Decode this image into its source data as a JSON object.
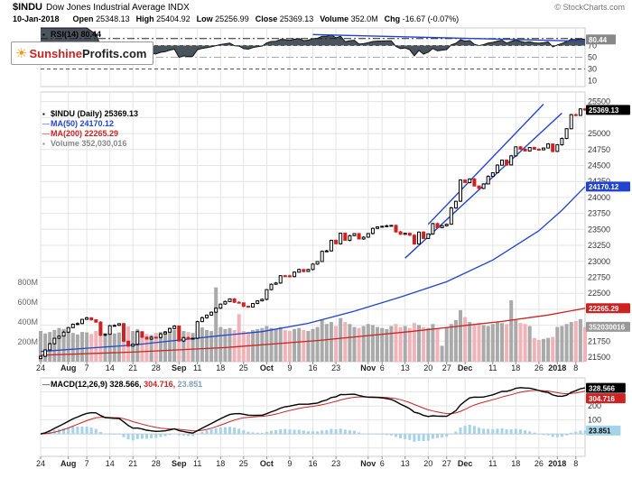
{
  "header": {
    "symbol": "$INDU",
    "title": "Dow Jones Industrial Average INDX",
    "credit": "© StockCharts.com",
    "date": "10-Jan-2018",
    "quote": [
      {
        "label": "Open",
        "value": "25348.13"
      },
      {
        "label": "High",
        "value": "25404.92"
      },
      {
        "label": "Low",
        "value": "25256.99"
      },
      {
        "label": "Close",
        "value": "25369.13"
      },
      {
        "label": "Volume",
        "value": "352.0M"
      },
      {
        "label": "Chg",
        "value": "-16.67 (-0.07%)"
      }
    ]
  },
  "logo": {
    "sun": "☀",
    "part1": "Sunshine",
    "part2": "Profits.com"
  },
  "rsi_panel": {
    "legend": "RSI(14) 80.44",
    "icon": "▪",
    "last_value": "80.44",
    "ticks": [
      70,
      50,
      30,
      10
    ]
  },
  "price_panel": {
    "legend": [
      {
        "name": "price-series",
        "icon": "▪",
        "color": "#000000",
        "text": "$INDU (Daily) 25369.13"
      },
      {
        "name": "ma50",
        "icon": "—",
        "color": "#2244cc",
        "text": "MA(50) 24170.12"
      },
      {
        "name": "ma200",
        "icon": "—",
        "color": "#cc2222",
        "text": "MA(200) 22265.29"
      },
      {
        "name": "volume",
        "icon": "▪",
        "color": "#888888",
        "text": "Volume 352,030,016"
      }
    ],
    "right_ticks": [
      25500,
      25000,
      24750,
      24500,
      24250,
      24000,
      23750,
      23500,
      23250,
      23000,
      22750,
      22500,
      21750,
      21500
    ],
    "left_ticks": [
      {
        "v": 800,
        "label": "800M"
      },
      {
        "v": 600,
        "label": "600M"
      },
      {
        "v": 400,
        "label": "400M"
      },
      {
        "v": 200,
        "label": "200M"
      }
    ],
    "boxes": {
      "close": "25369.13",
      "ma50": "24170.12",
      "ma200": "22265.29",
      "volume": "352030016"
    }
  },
  "macd_panel": {
    "legend_name": "MACD(12,26,9)",
    "legend_values": [
      {
        "text": "328.566,",
        "color": "#000000"
      },
      {
        "text": "304.716,",
        "color": "#cc2222"
      },
      {
        "text": "23.851",
        "color": "#7a9fbf"
      }
    ],
    "ticks": [
      200,
      100
    ],
    "boxes": {
      "macd": "328.566",
      "signal": "304.716",
      "hist": "23.851"
    }
  },
  "x_axis": {
    "ticks": [
      {
        "i": 0,
        "l": "24"
      },
      {
        "i": 6,
        "l": "Aug",
        "m": true
      },
      {
        "i": 10,
        "l": "7"
      },
      {
        "i": 15,
        "l": "14"
      },
      {
        "i": 20,
        "l": "21"
      },
      {
        "i": 25,
        "l": "28"
      },
      {
        "i": 30,
        "l": "Sep",
        "m": true
      },
      {
        "i": 34,
        "l": "11"
      },
      {
        "i": 39,
        "l": "18"
      },
      {
        "i": 44,
        "l": "25"
      },
      {
        "i": 49,
        "l": "Oct",
        "m": true
      },
      {
        "i": 54,
        "l": "9"
      },
      {
        "i": 59,
        "l": "16"
      },
      {
        "i": 64,
        "l": "23"
      },
      {
        "i": 71,
        "l": "Nov",
        "m": true
      },
      {
        "i": 74,
        "l": "6"
      },
      {
        "i": 79,
        "l": "13"
      },
      {
        "i": 84,
        "l": "20"
      },
      {
        "i": 88,
        "l": "27"
      },
      {
        "i": 92,
        "l": "Dec",
        "m": true
      },
      {
        "i": 98,
        "l": "11"
      },
      {
        "i": 103,
        "l": "18"
      },
      {
        "i": 108,
        "l": "26"
      },
      {
        "i": 112,
        "l": "2018",
        "m": true
      },
      {
        "i": 116,
        "l": "8"
      }
    ]
  },
  "colors": {
    "candle_up": "#000000",
    "candle_down": "#cc2222",
    "volume_up": "#aaaaaa",
    "volume_down": "#f0b3b8",
    "ma50": "#2244cc",
    "ma200": "#cc2222",
    "rsi_fill": "#3d4750",
    "rsi_line": "#111111",
    "macd_line": "#000000",
    "macd_signal": "#cc2222",
    "macd_hist": "#a5d3ea",
    "trendline": "#2244cc",
    "grid": "#e4e4e4"
  },
  "chart_data": {
    "type": "candlestick",
    "symbol": "$INDU",
    "timeframe": "Daily",
    "x_unit": "trading days, 24-Jul-2017 through 10-Jan-2018",
    "price_range": [
      21430,
      25650
    ],
    "closes": [
      21513,
      21613,
      21711,
      21796,
      21830,
      21891,
      21963,
      22016,
      22026,
      22092,
      22118,
      22085,
      22048,
      21844,
      21858,
      21993,
      21998,
      22024,
      21750,
      21674,
      21703,
      21899,
      21812,
      21783,
      21813,
      21808,
      21865,
      21892,
      21948,
      21987,
      21753,
      21807,
      21785,
      21797,
      22057,
      22118,
      22158,
      22203,
      22268,
      22331,
      22371,
      22413,
      22359,
      22350,
      22296,
      22284,
      22341,
      22381,
      22405,
      22557,
      22641,
      22661,
      22775,
      22774,
      22761,
      22831,
      22873,
      22841,
      22872,
      22957,
      22997,
      23158,
      23163,
      23329,
      23274,
      23441,
      23329,
      23401,
      23434,
      23349,
      23377,
      23435,
      23516,
      23539,
      23548,
      23557,
      23563,
      23462,
      23422,
      23440,
      23409,
      23271,
      23458,
      23358,
      23430,
      23591,
      23526,
      23558,
      23580,
      23836,
      23940,
      24272,
      24232,
      24290,
      24180,
      24140,
      24211,
      24329,
      24386,
      24505,
      24585,
      24508,
      24651,
      24792,
      24755,
      24727,
      24782,
      24754,
      24746,
      24774,
      24837,
      24719,
      24824,
      24923,
      25075,
      25296,
      25283,
      25386,
      25369
    ],
    "volumes_millions": [
      310,
      285,
      300,
      320,
      340,
      330,
      345,
      290,
      275,
      300,
      295,
      280,
      310,
      330,
      290,
      300,
      285,
      295,
      340,
      355,
      310,
      330,
      300,
      280,
      270,
      290,
      300,
      310,
      345,
      320,
      340,
      310,
      300,
      290,
      330,
      345,
      320,
      310,
      750,
      350,
      330,
      340,
      320,
      480,
      310,
      300,
      320,
      330,
      340,
      360,
      340,
      330,
      350,
      320,
      310,
      330,
      340,
      320,
      310,
      330,
      350,
      420,
      380,
      400,
      360,
      440,
      400,
      380,
      350,
      340,
      360,
      380,
      370,
      350,
      340,
      330,
      360,
      380,
      350,
      360,
      340,
      390,
      370,
      350,
      340,
      380,
      330,
      160,
      350,
      380,
      420,
      520,
      450,
      400,
      380,
      390,
      370,
      360,
      380,
      400,
      390,
      380,
      620,
      420,
      390,
      380,
      360,
      240,
      220,
      230,
      240,
      250,
      350,
      360,
      380,
      400,
      410,
      430,
      352
    ],
    "ma50_points": [
      [
        0,
        21590
      ],
      [
        10,
        21640
      ],
      [
        20,
        21690
      ],
      [
        29,
        21760
      ],
      [
        38,
        21830
      ],
      [
        48,
        21900
      ],
      [
        58,
        22030
      ],
      [
        68,
        22220
      ],
      [
        78,
        22440
      ],
      [
        88,
        22680
      ],
      [
        98,
        23020
      ],
      [
        108,
        23480
      ],
      [
        113,
        23800
      ],
      [
        118,
        24170.12
      ]
    ],
    "ma200_points": [
      [
        0,
        21530
      ],
      [
        20,
        21580
      ],
      [
        40,
        21650
      ],
      [
        60,
        21760
      ],
      [
        80,
        21900
      ],
      [
        100,
        22060
      ],
      [
        110,
        22160
      ],
      [
        118,
        22265.29
      ]
    ],
    "trendlines_price": [
      [
        79,
        23050,
        113,
        25320
      ],
      [
        84,
        23580,
        109,
        25460
      ]
    ],
    "trendline_rsi": [
      59,
      88.7,
      118,
      77.4
    ],
    "rsi_resistance_level": 82,
    "indicators": {
      "rsi_period": 14,
      "macd_params": [
        12,
        26,
        9
      ]
    },
    "last_values": {
      "open": 25348.13,
      "high": 25404.92,
      "low": 25256.99,
      "close": 25369.13,
      "volume_m": 352.0,
      "rsi": 80.44,
      "ma50": 24170.12,
      "ma200": 22265.29,
      "macd": 328.566,
      "macd_signal": 304.716,
      "macd_hist": 23.851
    }
  }
}
